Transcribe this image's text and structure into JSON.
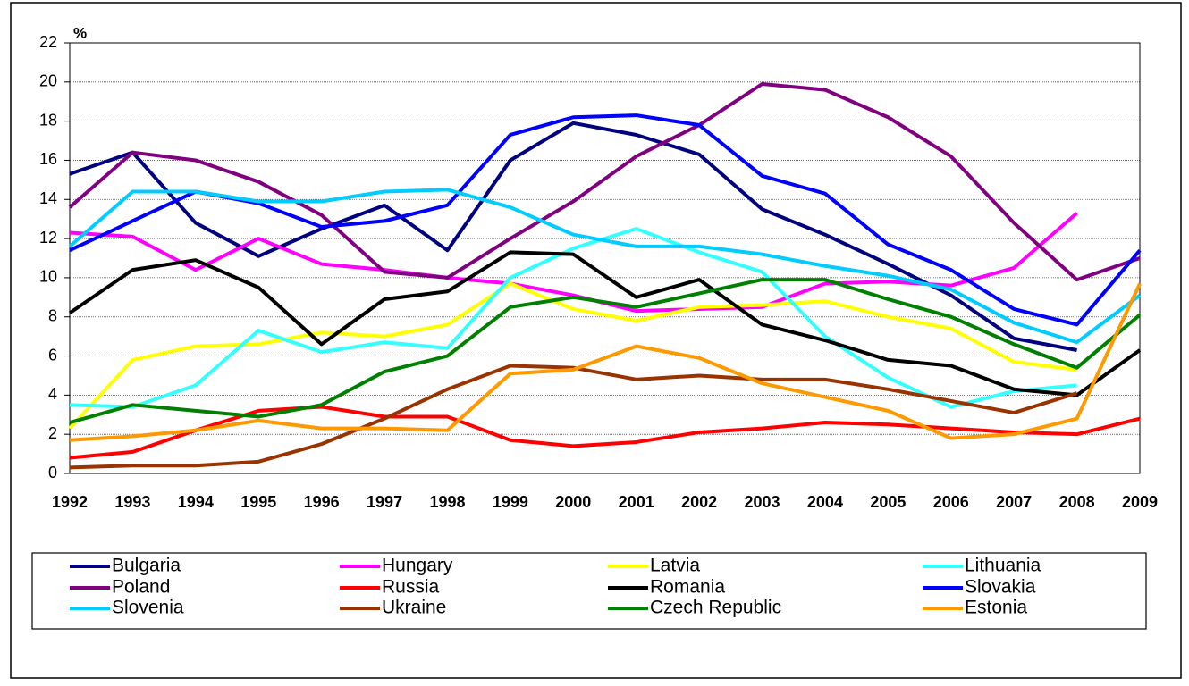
{
  "chart_data": {
    "type": "line",
    "y_label": "%",
    "categories": [
      "1992",
      "1993",
      "1994",
      "1995",
      "1996",
      "1997",
      "1998",
      "1999",
      "2000",
      "2001",
      "2002",
      "2003",
      "2004",
      "2005",
      "2006",
      "2007",
      "2008",
      "2009"
    ],
    "ylim": [
      0,
      22
    ],
    "yticks": [
      0,
      2,
      4,
      6,
      8,
      10,
      12,
      14,
      16,
      18,
      20,
      22
    ],
    "grid": true,
    "legend": "bottom",
    "series": [
      {
        "name": "Bulgaria",
        "color": "#000080",
        "values": [
          15.3,
          16.4,
          12.8,
          11.1,
          12.5,
          13.7,
          11.4,
          16.0,
          17.9,
          17.3,
          16.3,
          13.5,
          12.2,
          10.7,
          9.1,
          6.9,
          6.3,
          null
        ]
      },
      {
        "name": "Hungary",
        "color": "#ff00ff",
        "values": [
          12.3,
          12.1,
          10.4,
          12.0,
          10.7,
          10.4,
          10.0,
          9.7,
          9.1,
          8.3,
          8.4,
          8.5,
          9.7,
          9.8,
          9.6,
          10.5,
          13.3,
          null
        ]
      },
      {
        "name": "Latvia",
        "color": "#ffff00",
        "values": [
          2.3,
          5.8,
          6.5,
          6.6,
          7.2,
          7.0,
          7.6,
          9.7,
          8.4,
          7.8,
          8.5,
          8.6,
          8.8,
          8.0,
          7.4,
          5.7,
          5.3,
          null
        ]
      },
      {
        "name": "Lithuania",
        "color": "#33ffff",
        "values": [
          3.5,
          3.4,
          4.5,
          7.3,
          6.2,
          6.7,
          6.4,
          10.0,
          11.5,
          12.5,
          11.3,
          10.3,
          7.0,
          4.9,
          3.4,
          4.2,
          4.5,
          null
        ]
      },
      {
        "name": "Poland",
        "color": "#800080",
        "values": [
          13.6,
          16.4,
          16.0,
          14.9,
          13.2,
          10.3,
          10.0,
          12.0,
          13.9,
          16.2,
          17.8,
          19.9,
          19.6,
          18.2,
          16.2,
          12.8,
          9.9,
          11.0
        ]
      },
      {
        "name": "Russia",
        "color": "#ff0000",
        "values": [
          0.8,
          1.1,
          2.2,
          3.2,
          3.4,
          2.9,
          2.9,
          1.7,
          1.4,
          1.6,
          2.1,
          2.3,
          2.6,
          2.5,
          2.3,
          2.1,
          2.0,
          2.8
        ]
      },
      {
        "name": "Romania",
        "color": "#000000",
        "values": [
          8.2,
          10.4,
          10.9,
          9.5,
          6.6,
          8.9,
          9.3,
          11.3,
          11.2,
          9.0,
          9.9,
          7.6,
          6.8,
          5.8,
          5.5,
          4.3,
          4.0,
          6.3
        ]
      },
      {
        "name": "Slovakia",
        "color": "#0000ff",
        "values": [
          11.4,
          12.9,
          14.4,
          13.8,
          12.6,
          12.9,
          13.7,
          17.3,
          18.2,
          18.3,
          17.8,
          15.2,
          14.3,
          11.7,
          10.4,
          8.4,
          7.6,
          11.4
        ]
      },
      {
        "name": "Slovenia",
        "color": "#00ccff",
        "values": [
          11.6,
          14.4,
          14.4,
          13.9,
          13.9,
          14.4,
          14.5,
          13.6,
          12.2,
          11.6,
          11.6,
          11.2,
          10.6,
          10.1,
          9.4,
          7.7,
          6.7,
          9.1
        ]
      },
      {
        "name": "Ukraine",
        "color": "#993300",
        "values": [
          0.3,
          0.4,
          0.4,
          0.6,
          1.5,
          2.8,
          4.3,
          5.5,
          5.4,
          4.8,
          5.0,
          4.8,
          4.8,
          4.3,
          3.7,
          3.1,
          4.1,
          null
        ]
      },
      {
        "name": "Czech Republic",
        "color": "#008000",
        "values": [
          2.6,
          3.5,
          3.2,
          2.9,
          3.5,
          5.2,
          6.0,
          8.5,
          9.0,
          8.5,
          9.2,
          9.9,
          9.9,
          8.9,
          8.0,
          6.6,
          5.4,
          8.1
        ]
      },
      {
        "name": "Estonia",
        "color": "#ff9900",
        "values": [
          1.7,
          1.9,
          2.2,
          2.7,
          2.3,
          2.3,
          2.2,
          5.1,
          5.3,
          6.5,
          5.9,
          4.6,
          3.9,
          3.2,
          1.8,
          2.0,
          2.8,
          9.7
        ]
      }
    ]
  }
}
